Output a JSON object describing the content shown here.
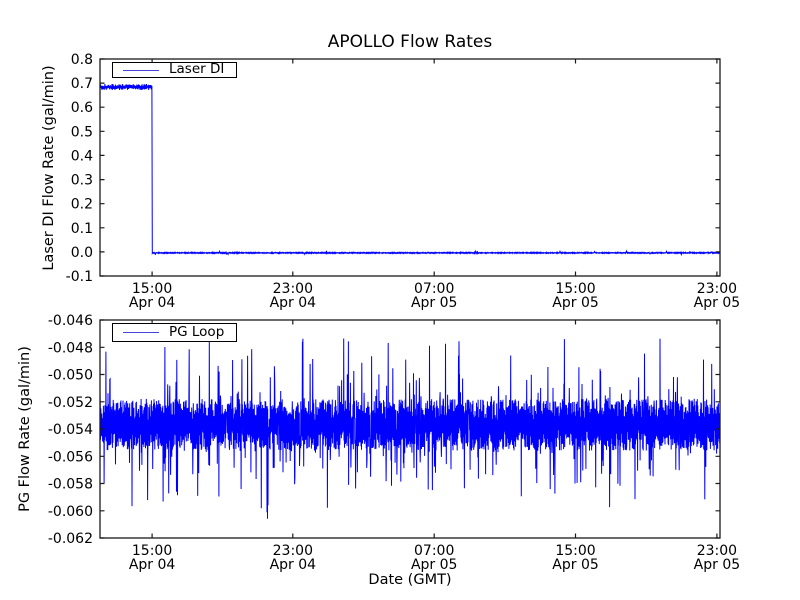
{
  "chart_data": [
    {
      "type": "line",
      "title": "APOLLO Flow Rates",
      "ylabel": "Laser DI Flow Rate (gal/min)",
      "ylim": [
        -0.1,
        0.8
      ],
      "grid": false,
      "legend": {
        "label": "Laser DI",
        "position": "upper left"
      },
      "yticks": {
        "values": [
          -0.1,
          0.0,
          0.1,
          0.2,
          0.3,
          0.4,
          0.5,
          0.6,
          0.7,
          0.8
        ],
        "labels": [
          "-0.1",
          "0.0",
          "0.1",
          "0.2",
          "0.3",
          "0.4",
          "0.5",
          "0.6",
          "0.7",
          "0.8"
        ]
      },
      "xticks": {
        "fractions": [
          0.084,
          0.311,
          0.539,
          0.767,
          0.995
        ],
        "times": [
          "15:00",
          "23:00",
          "07:00",
          "15:00",
          "23:00"
        ],
        "dates": [
          "Apr 04",
          "Apr 04",
          "Apr 05",
          "Apr 05",
          "Apr 05"
        ]
      },
      "series": [
        {
          "name": "Laser DI",
          "color": "#0000ff",
          "description": "Steady near 0.68 gal/min with noise from start (~12:00 Apr 04) until 15:00 Apr 04, then sharp vertical drop to ~0.00 gal/min (slightly below zero, ~-0.004) with tiny noise through 23:00 Apr 05",
          "pattern": {
            "type": "step_drop",
            "pre_mean": 0.684,
            "pre_band": 0.0125,
            "drop_fraction": 0.084,
            "post_mean": -0.004,
            "post_band": 0.0025,
            "post_spike_chance": 0.02,
            "post_spike_max": 0.009
          }
        }
      ]
    },
    {
      "type": "line",
      "ylabel": "PG Flow Rate (gal/min)",
      "xlabel": "Date (GMT)",
      "ylim": [
        -0.062,
        -0.046
      ],
      "grid": false,
      "legend": {
        "label": "PG Loop",
        "position": "upper left"
      },
      "yticks": {
        "values": [
          -0.062,
          -0.06,
          -0.058,
          -0.056,
          -0.054,
          -0.052,
          -0.05,
          -0.048,
          -0.046
        ],
        "labels": [
          "-0.062",
          "-0.060",
          "-0.058",
          "-0.056",
          "-0.054",
          "-0.052",
          "-0.050",
          "-0.048",
          "-0.046"
        ]
      },
      "xticks": {
        "fractions": [
          0.084,
          0.311,
          0.539,
          0.767,
          0.995
        ],
        "times": [
          "15:00",
          "23:00",
          "07:00",
          "15:00",
          "23:00"
        ],
        "dates": [
          "Apr 04",
          "Apr 04",
          "Apr 05",
          "Apr 05",
          "Apr 05"
        ]
      },
      "series": [
        {
          "name": "PG Loop",
          "color": "#0000ff",
          "description": "High-frequency noise for entire span; dense solid band from -0.052 to -0.056 centered near -0.0537, frequent spikes up to ~-0.047 and down to ~-0.061",
          "pattern": {
            "type": "noisy_band",
            "mean": -0.0537,
            "band": 0.0019,
            "spike_chance": 0.22,
            "spike_max": 0.0052,
            "clip_min": -0.0612,
            "clip_max": -0.0466
          }
        }
      ]
    }
  ]
}
